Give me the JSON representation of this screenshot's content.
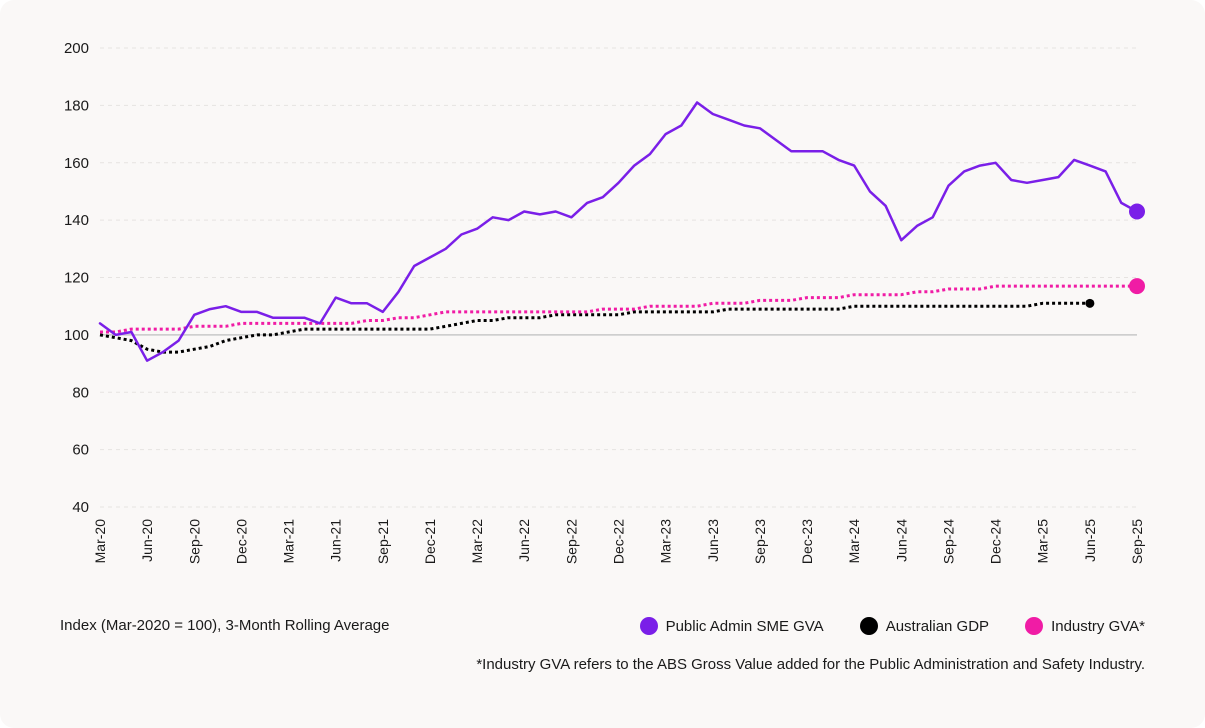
{
  "chart_data": {
    "type": "line",
    "ylim": [
      40,
      200
    ],
    "yticks": [
      40,
      60,
      80,
      100,
      120,
      140,
      160,
      180,
      200
    ],
    "grid": true,
    "reference_line": 100,
    "x_tick_labels": [
      "Mar-20",
      "Jun-20",
      "Sep-20",
      "Dec-20",
      "Mar-21",
      "Jun-21",
      "Sep-21",
      "Dec-21",
      "Mar-22",
      "Jun-22",
      "Sep-22",
      "Dec-22",
      "Mar-23",
      "Jun-23",
      "Sep-23",
      "Dec-23",
      "Mar-24",
      "Jun-24",
      "Sep-24",
      "Dec-24",
      "Mar-25",
      "Jun-25",
      "Sep-25"
    ],
    "x_range_months": [
      0,
      66
    ],
    "xlabel": "",
    "ylabel": "",
    "series": [
      {
        "name": "Public Admin SME GVA",
        "color": "#7a1fe8",
        "style": "solid",
        "end_marker": true,
        "x": [
          0,
          1,
          2,
          3,
          4,
          5,
          6,
          7,
          8,
          9,
          10,
          11,
          12,
          13,
          14,
          15,
          16,
          17,
          18,
          19,
          20,
          21,
          22,
          23,
          24,
          25,
          26,
          27,
          28,
          29,
          30,
          31,
          32,
          33,
          34,
          35,
          36,
          37,
          38,
          39,
          40,
          41,
          42,
          43,
          44,
          45,
          46,
          47,
          48,
          49,
          50,
          51,
          52,
          53,
          54,
          55,
          56,
          57,
          58,
          59,
          60,
          61,
          62,
          63,
          64,
          65,
          66
        ],
        "values": [
          104,
          100,
          101,
          91,
          94,
          98,
          107,
          109,
          110,
          108,
          108,
          106,
          106,
          106,
          104,
          113,
          111,
          111,
          108,
          115,
          124,
          127,
          130,
          135,
          137,
          141,
          140,
          143,
          142,
          143,
          141,
          146,
          148,
          153,
          159,
          163,
          170,
          173,
          181,
          177,
          175,
          173,
          172,
          168,
          164,
          164,
          164,
          161,
          159,
          150,
          145,
          133,
          138,
          141,
          152,
          157,
          159,
          160,
          154,
          153,
          154,
          155,
          161,
          159,
          157,
          146,
          143
        ]
      },
      {
        "name": "Australian GDP",
        "color": "#000000",
        "style": "dotted",
        "end_marker": true,
        "x": [
          0,
          1,
          2,
          3,
          4,
          5,
          6,
          7,
          8,
          9,
          10,
          11,
          12,
          13,
          14,
          15,
          16,
          17,
          18,
          19,
          20,
          21,
          22,
          23,
          24,
          25,
          26,
          27,
          28,
          29,
          30,
          31,
          32,
          33,
          34,
          35,
          36,
          37,
          38,
          39,
          40,
          41,
          42,
          43,
          44,
          45,
          46,
          47,
          48,
          49,
          50,
          51,
          52,
          53,
          54,
          55,
          56,
          57,
          58,
          59,
          60,
          61,
          62,
          63
        ],
        "values": [
          100,
          99,
          98,
          95,
          94,
          94,
          95,
          96,
          98,
          99,
          100,
          100,
          101,
          102,
          102,
          102,
          102,
          102,
          102,
          102,
          102,
          102,
          103,
          104,
          105,
          105,
          106,
          106,
          106,
          107,
          107,
          107,
          107,
          107,
          108,
          108,
          108,
          108,
          108,
          108,
          109,
          109,
          109,
          109,
          109,
          109,
          109,
          109,
          110,
          110,
          110,
          110,
          110,
          110,
          110,
          110,
          110,
          110,
          110,
          110,
          111,
          111,
          111,
          111
        ]
      },
      {
        "name": "Industry GVA*",
        "color": "#f01ca5",
        "style": "dotted",
        "end_marker": true,
        "x": [
          0,
          1,
          2,
          3,
          4,
          5,
          6,
          7,
          8,
          9,
          10,
          11,
          12,
          13,
          14,
          15,
          16,
          17,
          18,
          19,
          20,
          21,
          22,
          23,
          24,
          25,
          26,
          27,
          28,
          29,
          30,
          31,
          32,
          33,
          34,
          35,
          36,
          37,
          38,
          39,
          40,
          41,
          42,
          43,
          44,
          45,
          46,
          47,
          48,
          49,
          50,
          51,
          52,
          53,
          54,
          55,
          56,
          57,
          58,
          59,
          60,
          61,
          62,
          63,
          64,
          65,
          66
        ],
        "values": [
          101,
          101,
          102,
          102,
          102,
          102,
          103,
          103,
          103,
          104,
          104,
          104,
          104,
          104,
          104,
          104,
          104,
          105,
          105,
          106,
          106,
          107,
          108,
          108,
          108,
          108,
          108,
          108,
          108,
          108,
          108,
          108,
          109,
          109,
          109,
          110,
          110,
          110,
          110,
          111,
          111,
          111,
          112,
          112,
          112,
          113,
          113,
          113,
          114,
          114,
          114,
          114,
          115,
          115,
          116,
          116,
          116,
          117,
          117,
          117,
          117,
          117,
          117,
          117,
          117,
          117,
          117
        ]
      }
    ]
  },
  "footer": {
    "index_note": "Index (Mar-2020 = 100), 3-Month Rolling Average",
    "footnote": "*Industry GVA refers to the ABS Gross Value added for the Public Administration and Safety Industry."
  },
  "legend": [
    {
      "label": "Public Admin SME GVA",
      "color": "#7a1fe8"
    },
    {
      "label": "Australian GDP",
      "color": "#000000"
    },
    {
      "label": "Industry GVA*",
      "color": "#f01ca5"
    }
  ]
}
